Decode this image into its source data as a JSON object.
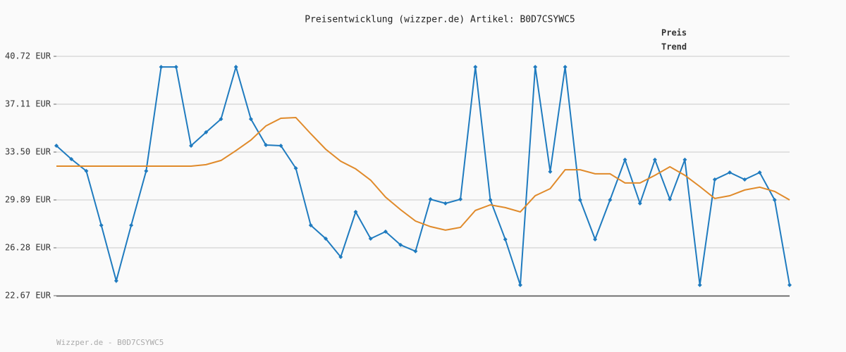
{
  "chart_data": {
    "type": "line",
    "title": "Preisentwicklung (wizzper.de) Artikel: B0D7CSYWC5",
    "footer": "Wizzper.de - B0D7CSYWC5",
    "categories": [
      null,
      null,
      null,
      null,
      null,
      null,
      null,
      null,
      null,
      null,
      null,
      null,
      null,
      null,
      null,
      null,
      null,
      null,
      null,
      null,
      null,
      null,
      null,
      null,
      null,
      null,
      null,
      null,
      null,
      null,
      null,
      null,
      null,
      null,
      null,
      null,
      null,
      null,
      null,
      null,
      null,
      null,
      null,
      null,
      null,
      null,
      null,
      null,
      null,
      null
    ],
    "series": [
      {
        "name": "Preis",
        "color": "#1f7bbf",
        "values": [
          33.98,
          32.97,
          32.07,
          27.98,
          23.79,
          27.98,
          32.07,
          39.92,
          39.92,
          33.98,
          34.99,
          35.99,
          39.92,
          35.99,
          34.03,
          33.98,
          32.28,
          27.98,
          26.97,
          25.59,
          28.99,
          26.97,
          27.5,
          26.5,
          26.02,
          29.94,
          29.63,
          29.94,
          39.92,
          29.89,
          26.92,
          23.47,
          39.92,
          32.02,
          39.92,
          29.89,
          26.92,
          29.89,
          32.92,
          29.63,
          32.92,
          29.94,
          32.92,
          23.47,
          31.43,
          31.96,
          31.43,
          31.96,
          29.89,
          23.47
        ]
      },
      {
        "name": "Trend",
        "color": "#e08a2a",
        "values": [
          32.44,
          32.44,
          32.44,
          32.44,
          32.44,
          32.44,
          32.44,
          32.44,
          32.44,
          32.44,
          32.55,
          32.87,
          33.61,
          34.4,
          35.47,
          36.05,
          36.1,
          34.88,
          33.71,
          32.81,
          32.23,
          31.38,
          30.1,
          29.15,
          28.3,
          27.88,
          27.61,
          27.82,
          29.1,
          29.52,
          29.31,
          28.99,
          30.21,
          30.74,
          32.17,
          32.17,
          31.86,
          31.86,
          31.17,
          31.17,
          31.75,
          32.39,
          31.75,
          30.9,
          30.0,
          30.21,
          30.64,
          30.85,
          30.53,
          29.89
        ]
      }
    ],
    "ylim": [
      22.67,
      40.72
    ],
    "yticks": [
      {
        "value": 22.67,
        "label": "22.67 EUR"
      },
      {
        "value": 26.28,
        "label": "26.28 EUR"
      },
      {
        "value": 29.89,
        "label": "29.89 EUR"
      },
      {
        "value": 33.5,
        "label": "33.50 EUR"
      },
      {
        "value": 37.11,
        "label": "37.11 EUR"
      },
      {
        "value": 40.72,
        "label": "40.72 EUR"
      }
    ],
    "grid": true
  }
}
